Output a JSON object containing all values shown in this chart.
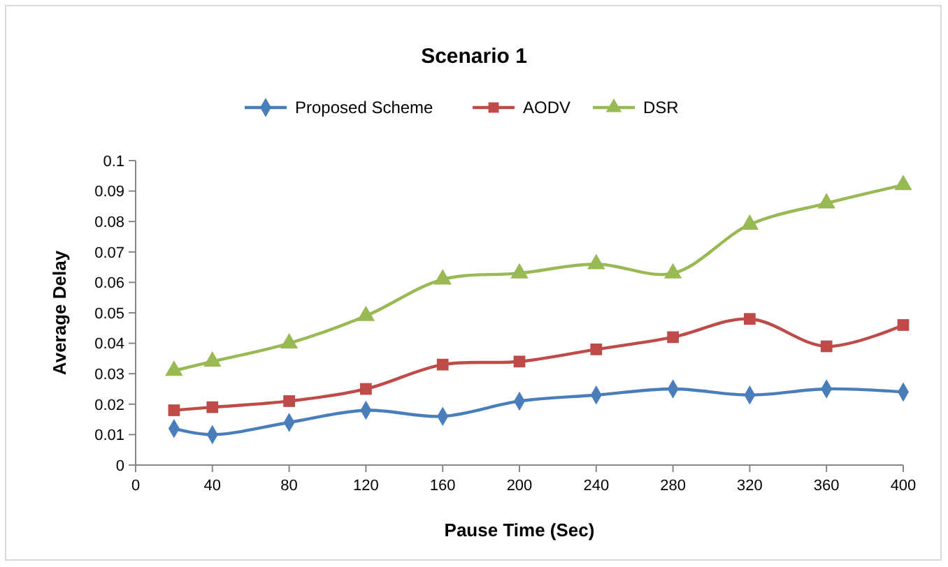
{
  "chart_data": {
    "type": "line",
    "title": "Scenario 1",
    "xlabel": "Pause Time (Sec)",
    "ylabel": "Average Delay",
    "x": [
      20,
      40,
      80,
      120,
      160,
      200,
      240,
      280,
      320,
      360,
      400
    ],
    "series": [
      {
        "name": "Proposed Scheme",
        "color": "#4a7ebb",
        "marker": "diamond",
        "values": [
          0.012,
          0.01,
          0.014,
          0.018,
          0.016,
          0.021,
          0.023,
          0.025,
          0.023,
          0.025,
          0.024
        ]
      },
      {
        "name": "AODV",
        "color": "#be4b48",
        "marker": "square",
        "values": [
          0.018,
          0.019,
          0.021,
          0.025,
          0.033,
          0.034,
          0.038,
          0.042,
          0.048,
          0.039,
          0.046
        ]
      },
      {
        "name": "DSR",
        "color": "#98b954",
        "marker": "triangle",
        "values": [
          0.031,
          0.034,
          0.04,
          0.049,
          0.061,
          0.063,
          0.066,
          0.063,
          0.079,
          0.086,
          0.092
        ]
      }
    ],
    "xlim": [
      0,
      400
    ],
    "xticks": [
      0,
      40,
      80,
      120,
      160,
      200,
      240,
      280,
      320,
      360,
      400
    ],
    "ylim": [
      0,
      0.1
    ],
    "yticks": [
      0,
      0.01,
      0.02,
      0.03,
      0.04,
      0.05,
      0.06,
      0.07,
      0.08,
      0.09,
      0.1
    ],
    "grid": false,
    "legend": "top",
    "line_style": "solid"
  }
}
